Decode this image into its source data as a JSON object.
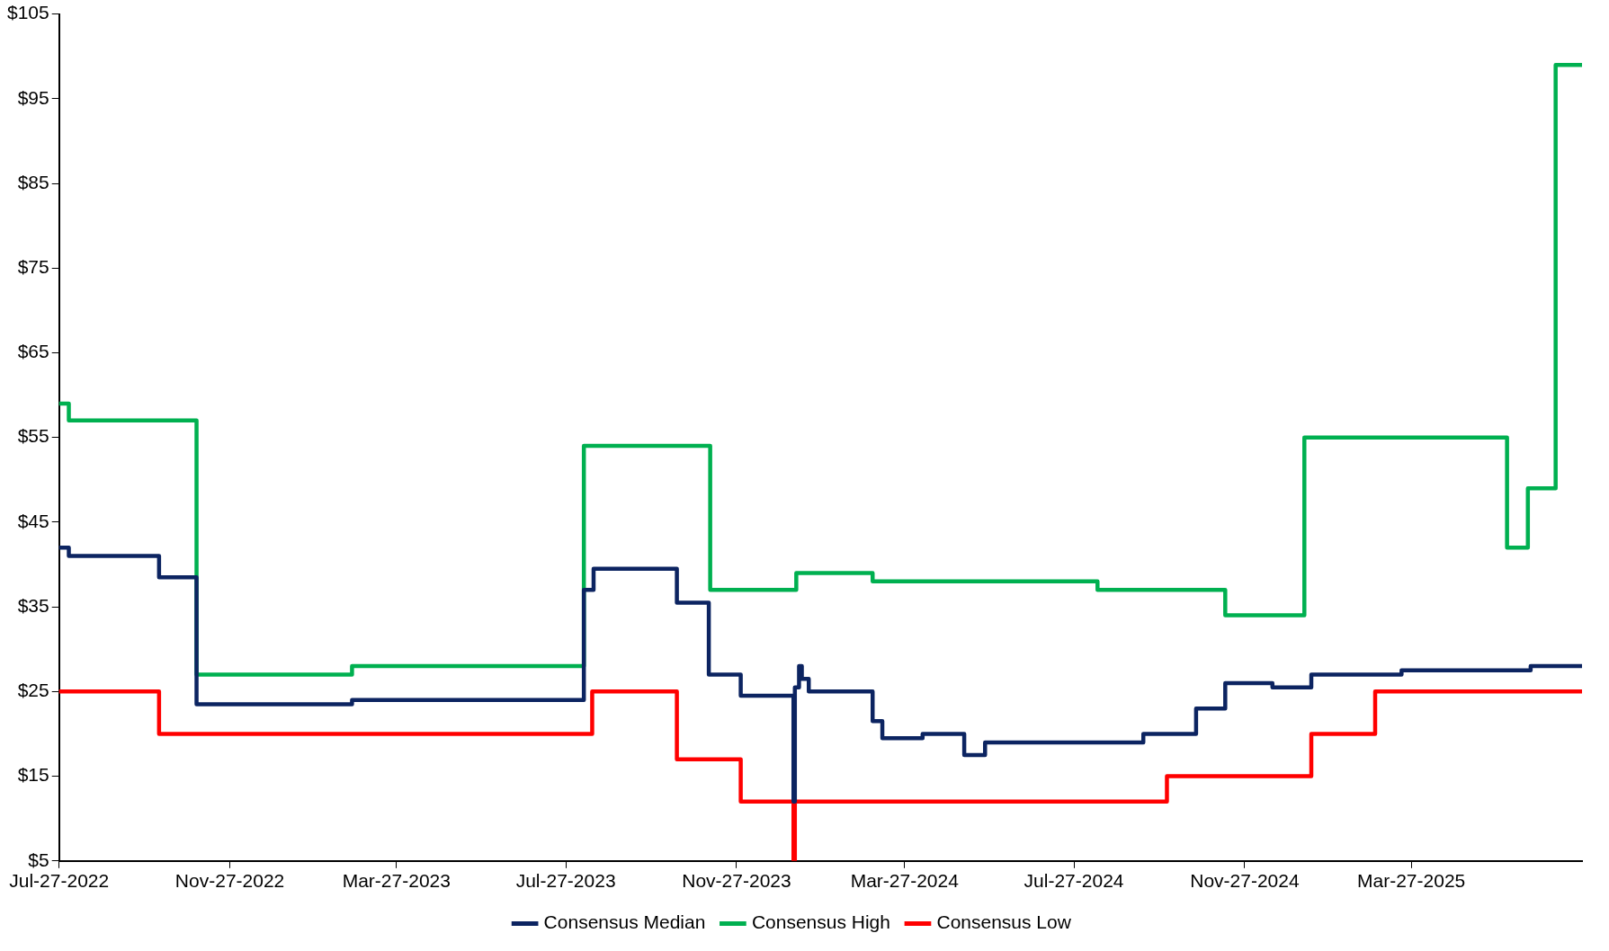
{
  "chart_data": {
    "type": "step",
    "xlim": [
      "2022-07-27",
      "2025-07-28"
    ],
    "xticks": [
      {
        "value": "2022-07-27",
        "label": "Jul-27-2022"
      },
      {
        "value": "2022-11-27",
        "label": "Nov-27-2022"
      },
      {
        "value": "2023-03-27",
        "label": "Mar-27-2023"
      },
      {
        "value": "2023-07-27",
        "label": "Jul-27-2023"
      },
      {
        "value": "2023-11-27",
        "label": "Nov-27-2023"
      },
      {
        "value": "2024-03-27",
        "label": "Mar-27-2024"
      },
      {
        "value": "2024-07-27",
        "label": "Jul-27-2024"
      },
      {
        "value": "2024-11-27",
        "label": "Nov-27-2024"
      },
      {
        "value": "2025-03-27",
        "label": "Mar-27-2025"
      }
    ],
    "ylim": [
      5,
      105
    ],
    "yticks": [
      {
        "value": 5,
        "label": "$5"
      },
      {
        "value": 15,
        "label": "$15"
      },
      {
        "value": 25,
        "label": "$25"
      },
      {
        "value": 35,
        "label": "$35"
      },
      {
        "value": 45,
        "label": "$45"
      },
      {
        "value": 55,
        "label": "$55"
      },
      {
        "value": 65,
        "label": "$65"
      },
      {
        "value": 75,
        "label": "$75"
      },
      {
        "value": 85,
        "label": "$85"
      },
      {
        "value": 95,
        "label": "$95"
      },
      {
        "value": 105,
        "label": "$105"
      }
    ],
    "grid": false,
    "legend": "bottom",
    "line_style": "solid",
    "marker": "none",
    "series": [
      {
        "name": "Consensus Median",
        "color": "#0c2461",
        "x": [
          "2022-07-27",
          "2022-08-03",
          "2022-10-07",
          "2022-11-03",
          "2023-02-23",
          "2023-08-09",
          "2023-08-16",
          "2023-10-15",
          "2023-11-07",
          "2023-11-30",
          "2024-01-07",
          "2024-01-08",
          "2024-01-11",
          "2024-01-13",
          "2024-01-18",
          "2024-03-04",
          "2024-03-11",
          "2024-04-09",
          "2024-05-09",
          "2024-05-24",
          "2024-09-15",
          "2024-10-23",
          "2024-11-13",
          "2024-12-17",
          "2025-01-14",
          "2025-03-20",
          "2025-06-21",
          "2025-07-28"
        ],
        "values": [
          42,
          41,
          38.5,
          23.5,
          24,
          37,
          39.5,
          35.5,
          27,
          24.5,
          12,
          25.5,
          28,
          26.5,
          25,
          21.5,
          19.5,
          20,
          17.5,
          19,
          20,
          23,
          26,
          25.5,
          27,
          27.5,
          28,
          28
        ]
      },
      {
        "name": "Consensus High",
        "color": "#00b050",
        "x": [
          "2022-07-27",
          "2022-08-03",
          "2022-11-03",
          "2023-02-23",
          "2023-08-09",
          "2023-11-08",
          "2024-01-09",
          "2024-03-04",
          "2024-08-13",
          "2024-11-13",
          "2025-01-09",
          "2025-06-04",
          "2025-06-19",
          "2025-07-09",
          "2025-07-28"
        ],
        "values": [
          59,
          57,
          27,
          28,
          54,
          37,
          39,
          38,
          37,
          34,
          55,
          42,
          49,
          99,
          99
        ]
      },
      {
        "name": "Consensus Low",
        "color": "#ff0000",
        "x": [
          "2022-07-27",
          "2022-10-07",
          "2023-08-15",
          "2023-10-15",
          "2023-11-30",
          "2024-01-07",
          "2024-01-08",
          "2024-10-02",
          "2025-01-14",
          "2025-03-01",
          "2025-07-28"
        ],
        "values": [
          25,
          20,
          25,
          17,
          12,
          5,
          12,
          15,
          20,
          25,
          25
        ]
      }
    ]
  }
}
